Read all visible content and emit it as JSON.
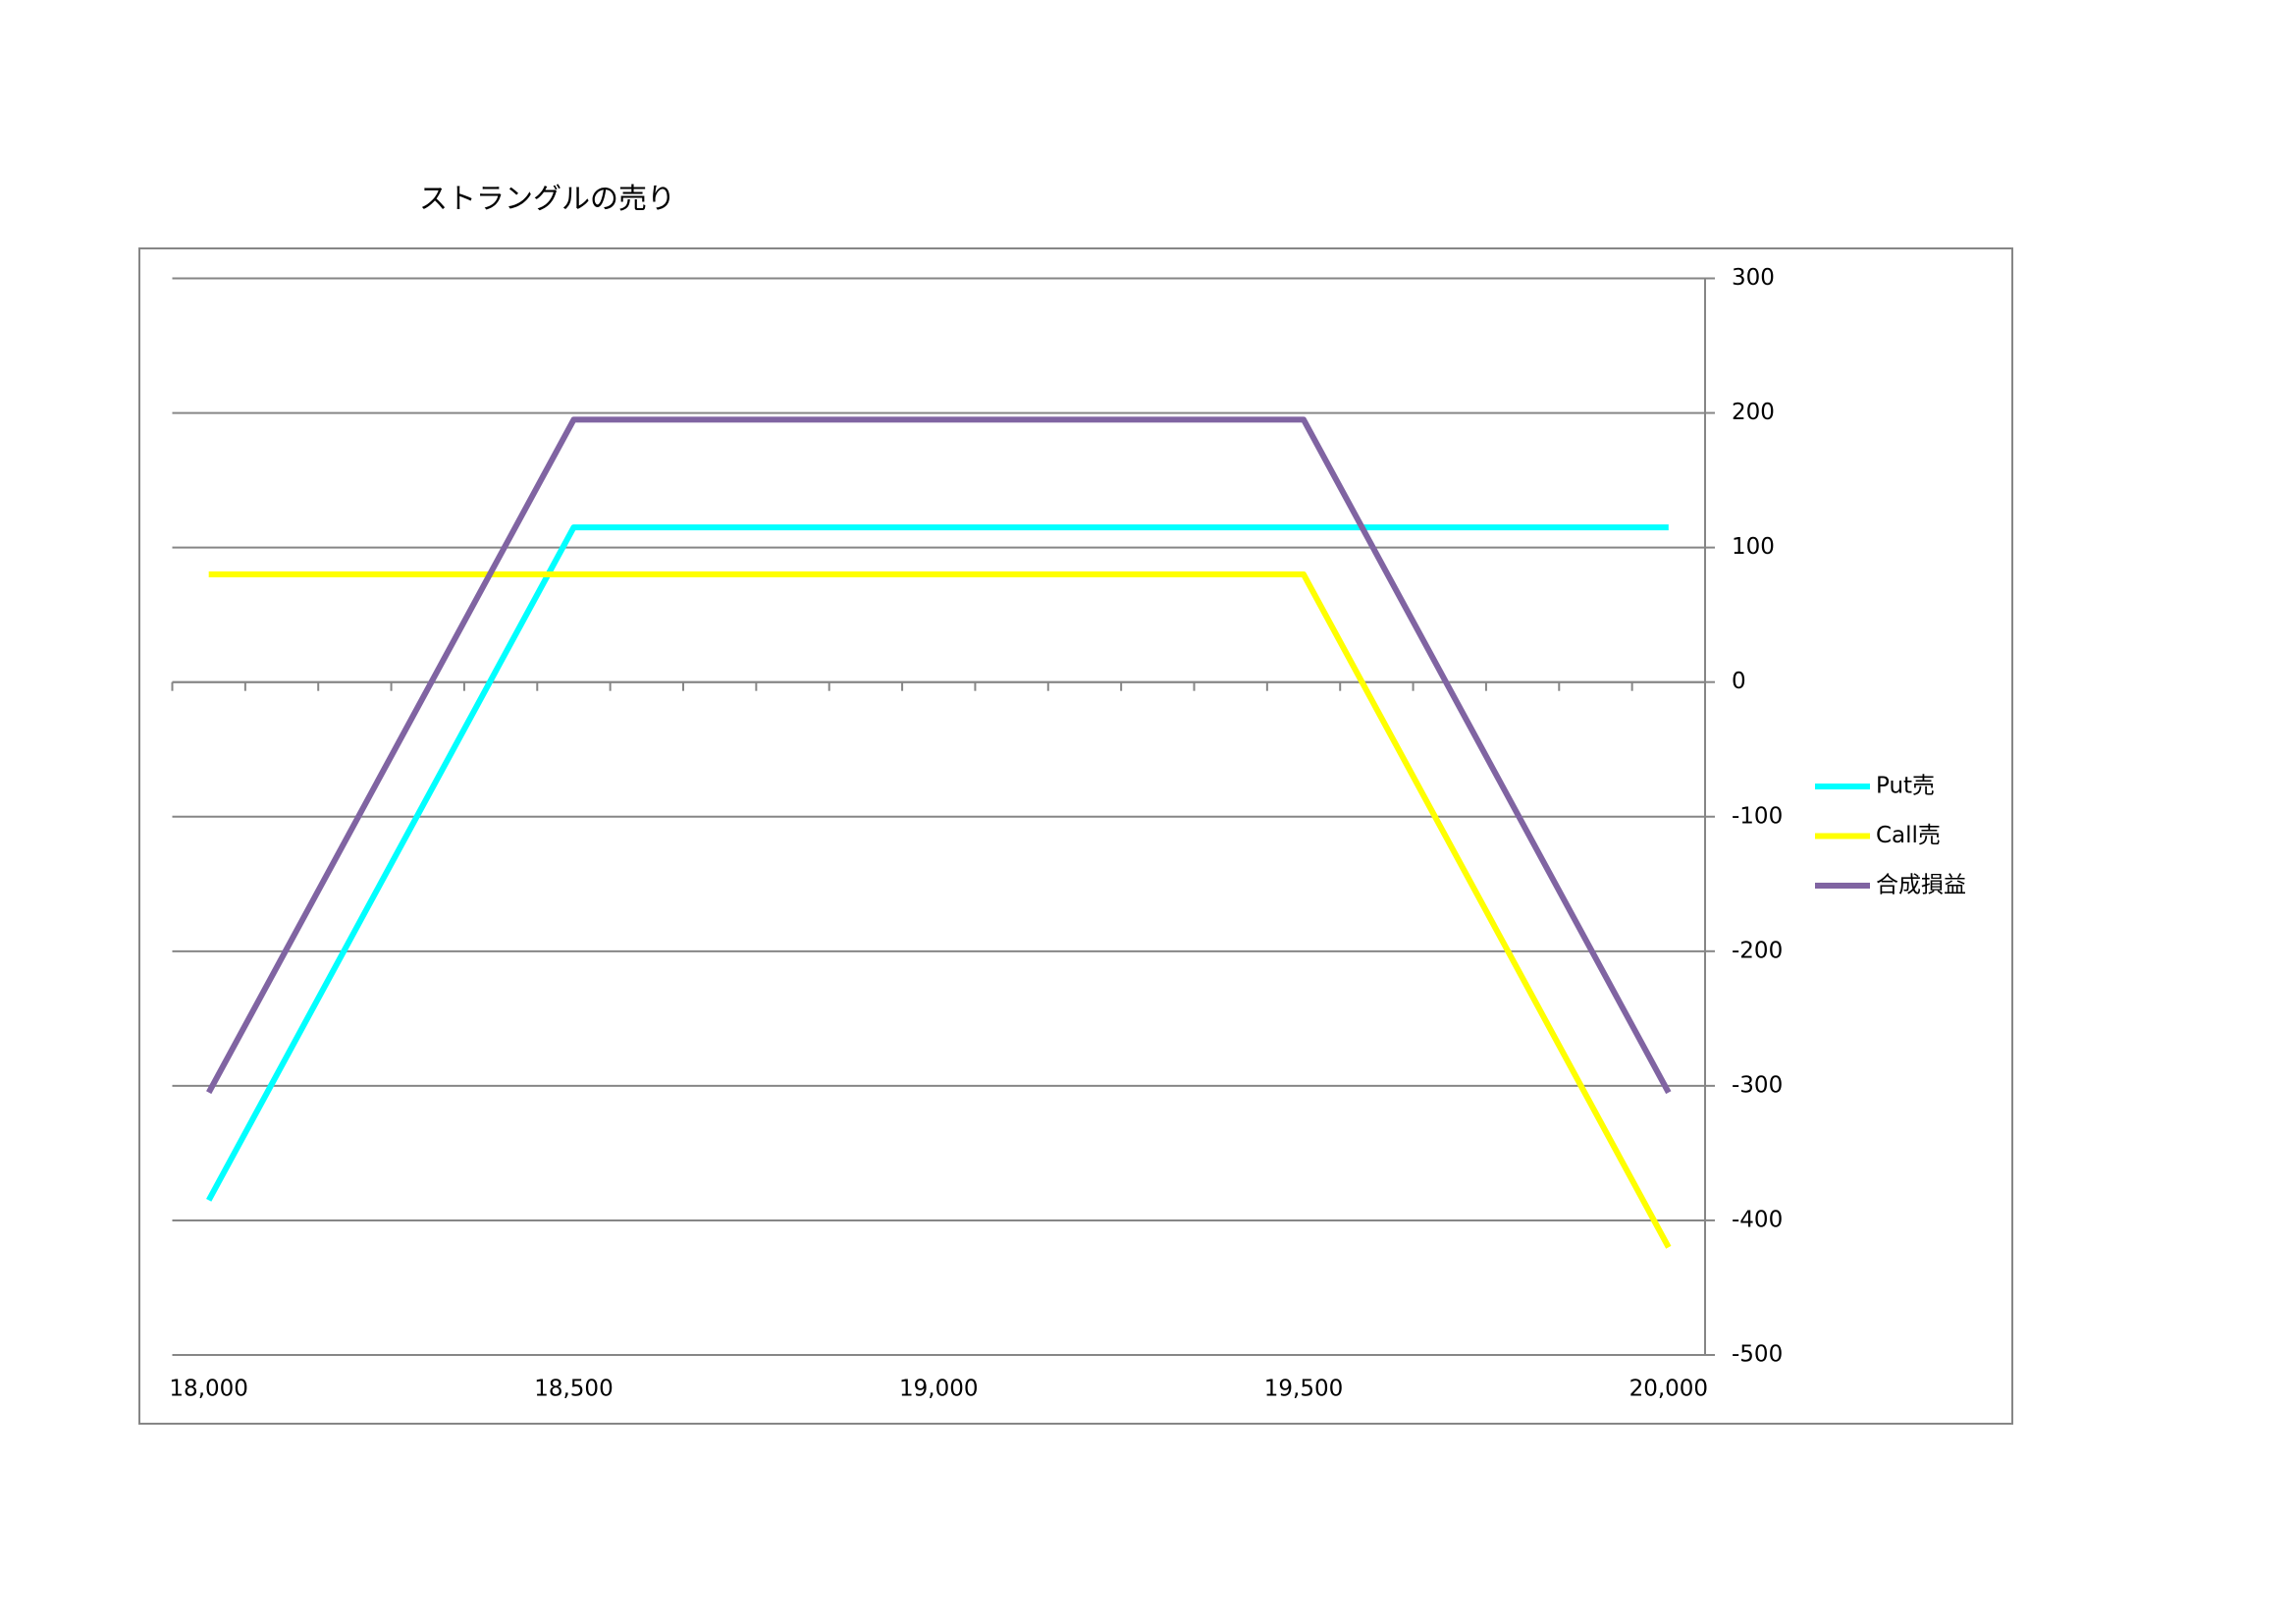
{
  "chart_data": {
    "type": "line",
    "title": "ストラングルの売り",
    "x": [
      18000,
      18500,
      19500,
      20000
    ],
    "series": [
      {
        "name": "Put売",
        "color": "#00ffff",
        "values": [
          -385,
          115,
          115,
          115
        ]
      },
      {
        "name": "Call売",
        "color": "#ffff00",
        "values": [
          80,
          80,
          80,
          -420
        ]
      },
      {
        "name": "合成損益",
        "color": "#8064a2",
        "values": [
          -305,
          195,
          195,
          -305
        ]
      }
    ],
    "xlim": [
      17950,
      20050
    ],
    "xticks": [
      {
        "value": 18000,
        "label": "18,000"
      },
      {
        "value": 18500,
        "label": "18,500"
      },
      {
        "value": 19000,
        "label": "19,000"
      },
      {
        "value": 19500,
        "label": "19,500"
      },
      {
        "value": 20000,
        "label": "20,000"
      }
    ],
    "xminorticks": [
      17950,
      18050,
      18150,
      18250,
      18350,
      18450,
      18550,
      18650,
      18750,
      18850,
      18950,
      19050,
      19150,
      19250,
      19350,
      19450,
      19550,
      19650,
      19750,
      19850,
      19950,
      20050
    ],
    "ylim": [
      -500,
      300
    ],
    "yticks": [
      -500,
      -400,
      -300,
      -200,
      -100,
      0,
      100,
      200,
      300
    ],
    "negative_tick_color": "#ff0000",
    "grid": true,
    "legend": "right"
  }
}
